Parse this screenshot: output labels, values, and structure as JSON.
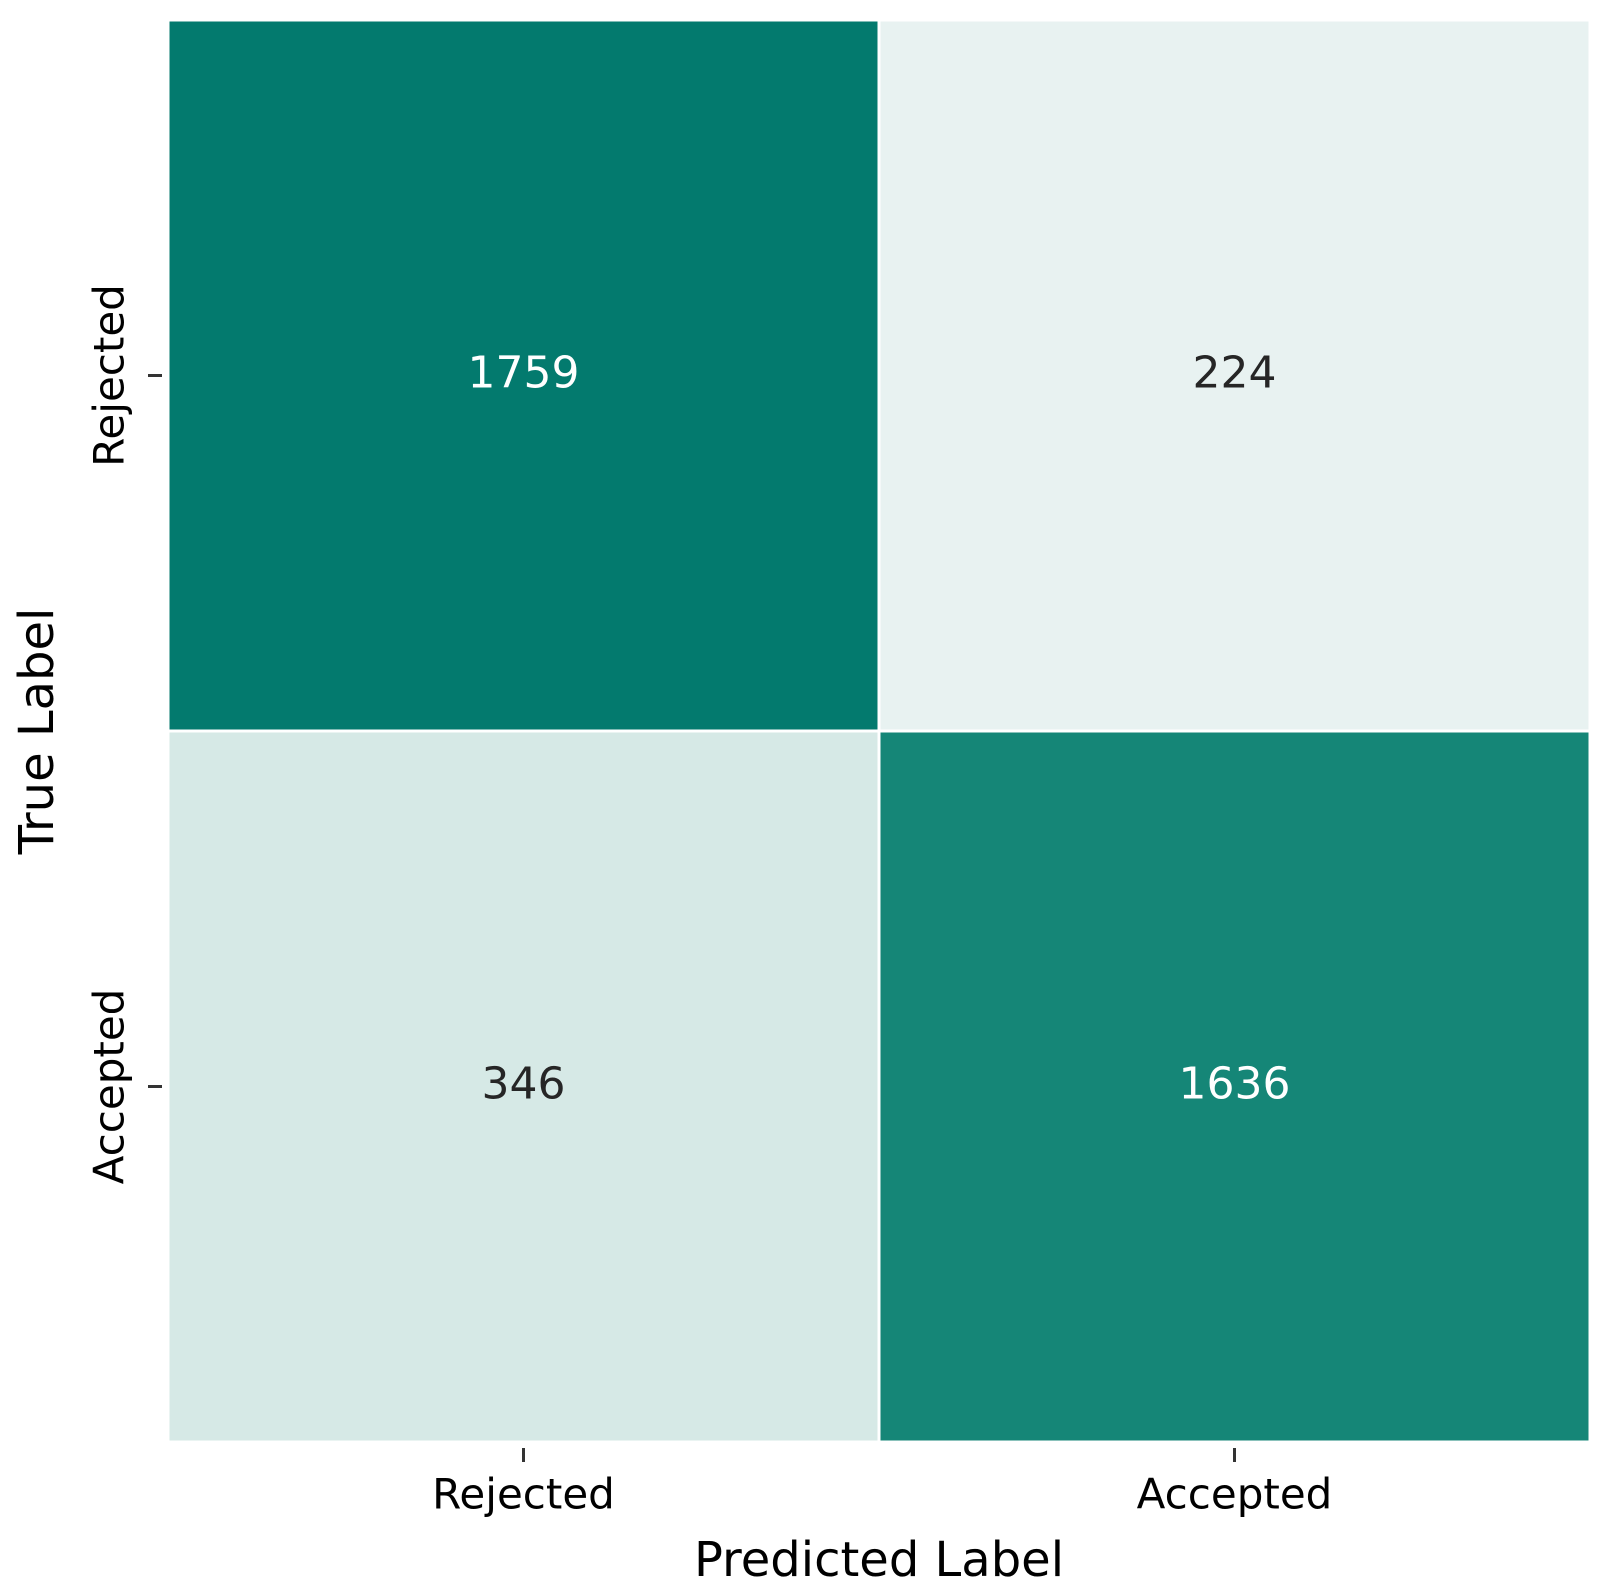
{
  "chart_data": {
    "type": "heatmap",
    "xlabel": "Predicted Label",
    "ylabel": "True Label",
    "x_categories": [
      "Rejected",
      "Accepted"
    ],
    "y_categories": [
      "Rejected",
      "Accepted"
    ],
    "values": [
      [
        1759,
        224
      ],
      [
        346,
        1636
      ]
    ],
    "colors": [
      [
        "#037a6e",
        "#e8f2f1"
      ],
      [
        "#d6e9e6",
        "#158677"
      ]
    ]
  }
}
